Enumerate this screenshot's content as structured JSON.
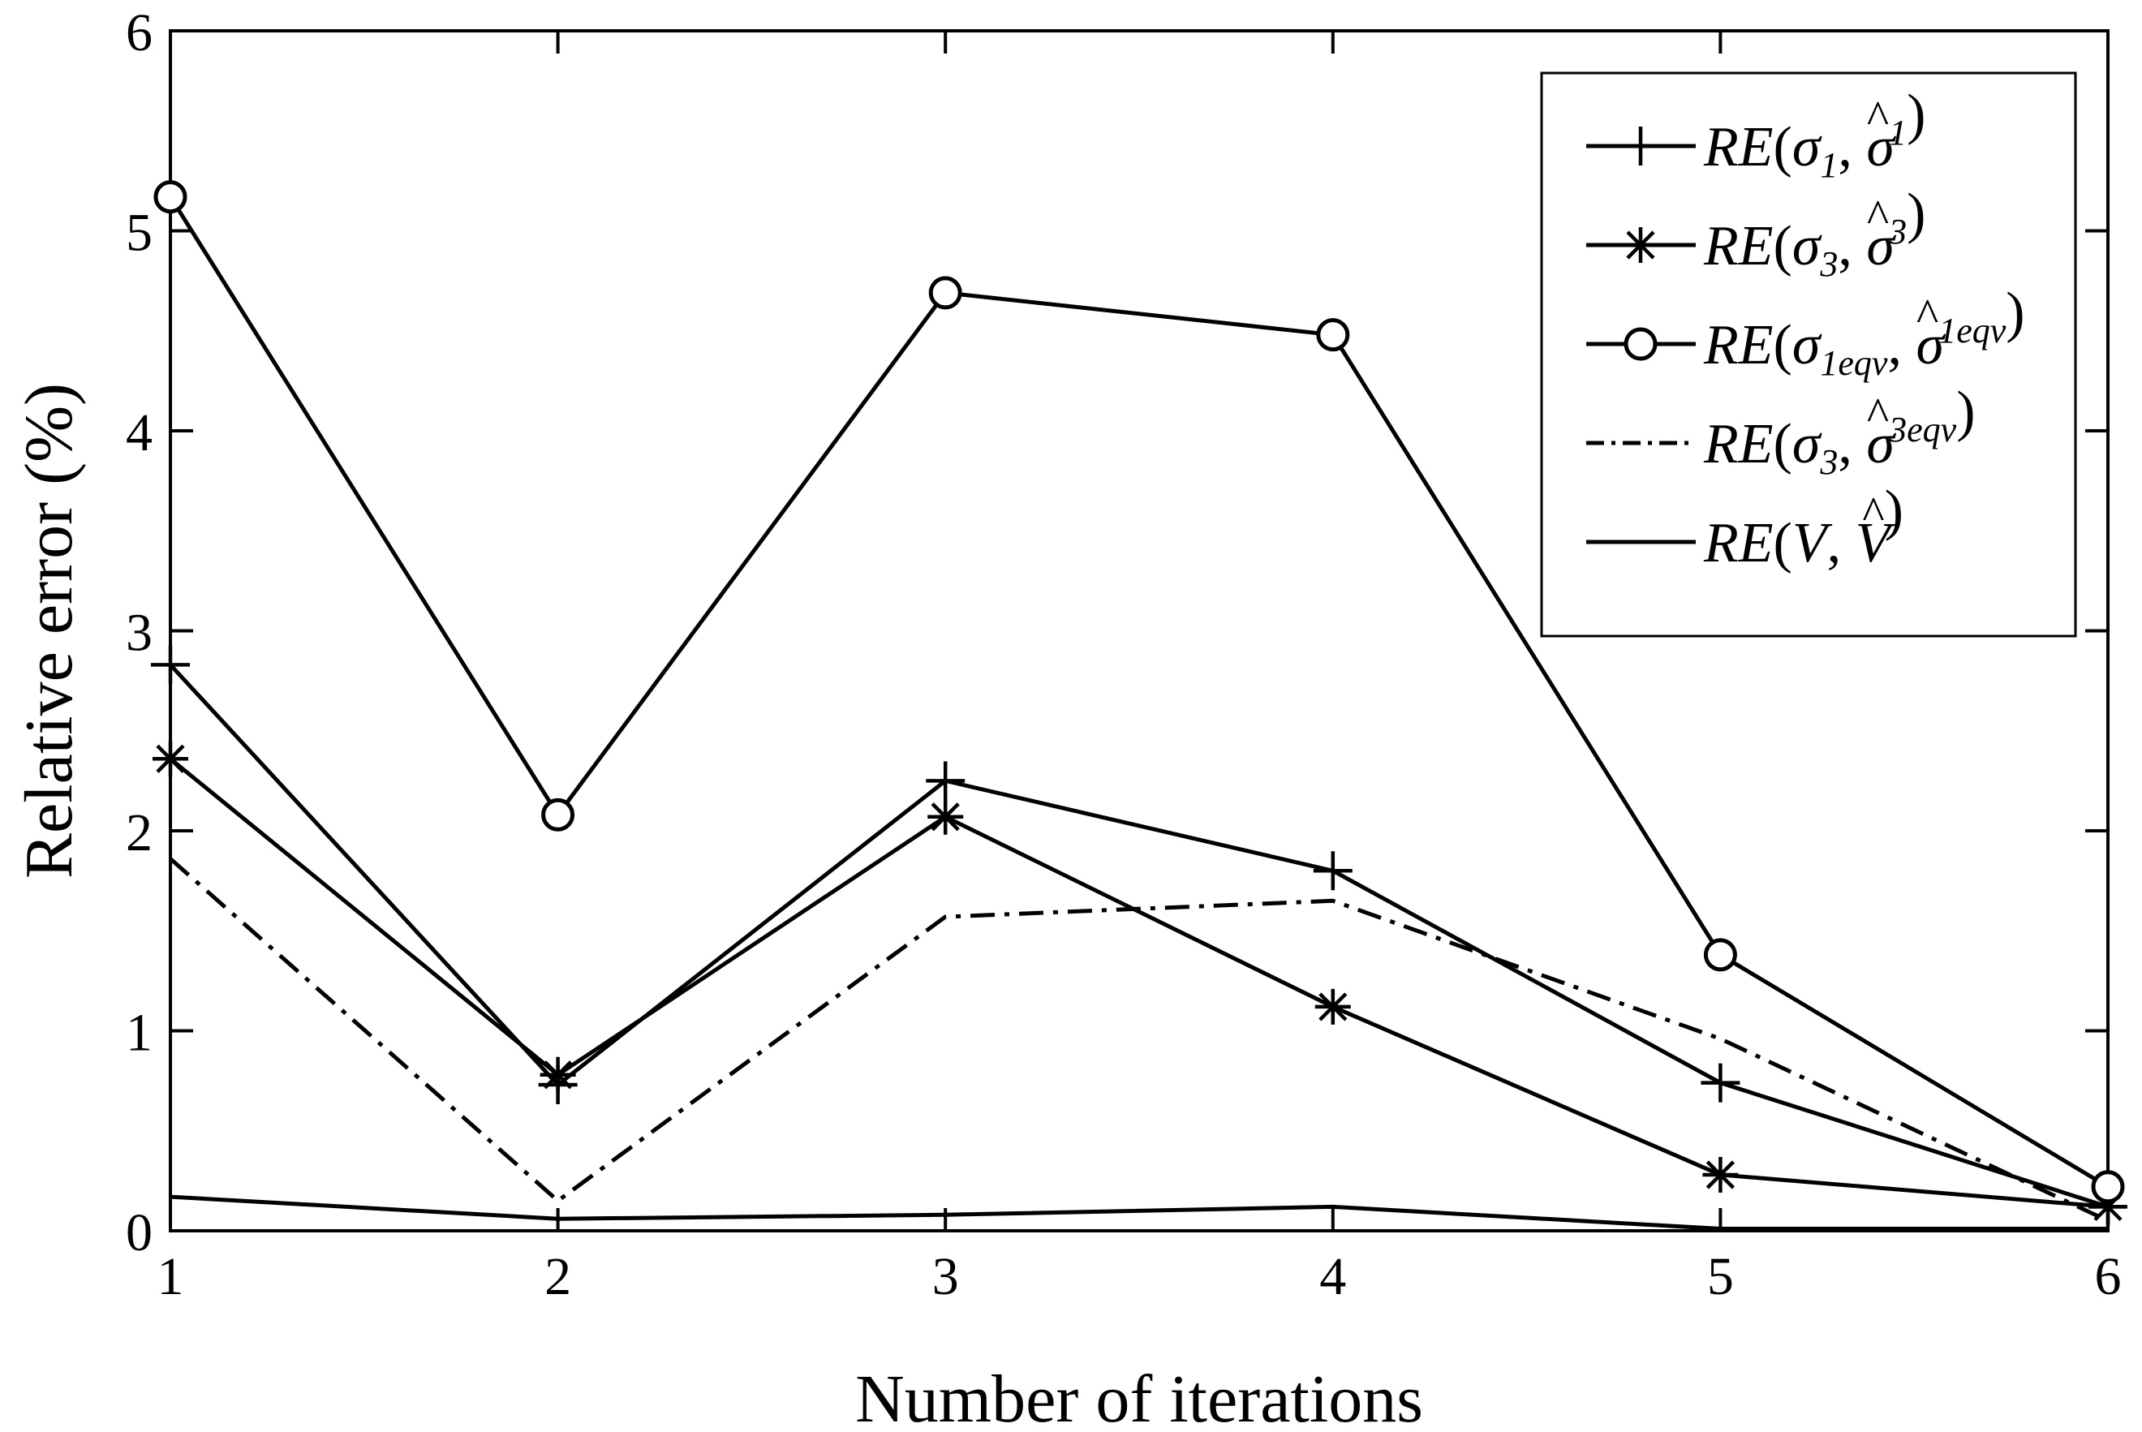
{
  "chart_data": {
    "type": "line",
    "title": "",
    "xlabel": "Number of iterations",
    "ylabel": "Relative error (%)",
    "xlim": [
      1,
      6
    ],
    "ylim": [
      0,
      6
    ],
    "x": [
      1,
      2,
      3,
      4,
      5,
      6
    ],
    "xticks": [
      "1",
      "2",
      "3",
      "4",
      "5",
      "6"
    ],
    "yticks": [
      "0",
      "1",
      "2",
      "3",
      "4",
      "5",
      "6"
    ],
    "grid": false,
    "legend_position": "top-right",
    "series": [
      {
        "id": "s1",
        "legend": {
          "base": "RE(",
          "sym": "σ",
          "sub": "1",
          "sep": ", ",
          "hatsym": "σ",
          "hatsub": "1",
          "close": ")"
        },
        "marker": "plus",
        "linestyle": "solid",
        "values": [
          2.83,
          0.73,
          2.25,
          1.8,
          0.74,
          0.12
        ]
      },
      {
        "id": "s2",
        "legend": {
          "base": "RE(",
          "sym": "σ",
          "sub": "3",
          "sep": ", ",
          "hatsym": "σ",
          "hatsub": "3",
          "close": ")"
        },
        "marker": "asterisk",
        "linestyle": "solid",
        "values": [
          2.36,
          0.78,
          2.07,
          1.12,
          0.28,
          0.12
        ]
      },
      {
        "id": "s3",
        "legend": {
          "base": "RE(",
          "sym": "σ",
          "sub": "1eqv",
          "sep": ", ",
          "hatsym": "σ",
          "hatsub": "1eqv",
          "close": ")"
        },
        "marker": "circle",
        "linestyle": "solid",
        "values": [
          5.17,
          2.08,
          4.69,
          4.48,
          1.38,
          0.22
        ]
      },
      {
        "id": "s4",
        "legend": {
          "base": "RE(",
          "sym": "σ",
          "sub": "3",
          "sep": ", ",
          "hatsym": "σ",
          "hatsub": "3eqv",
          "close": ")"
        },
        "marker": "none",
        "linestyle": "dashdot",
        "values": [
          1.86,
          0.15,
          1.57,
          1.65,
          0.96,
          0.05
        ]
      },
      {
        "id": "s5",
        "legend": {
          "base": "RE(",
          "sym": "V",
          "sub": "",
          "sep": ", ",
          "hatsym": "V",
          "hatsub": "",
          "close": ")"
        },
        "marker": "none",
        "linestyle": "solid",
        "values": [
          0.17,
          0.06,
          0.08,
          0.12,
          0.01,
          0.01
        ]
      }
    ]
  }
}
